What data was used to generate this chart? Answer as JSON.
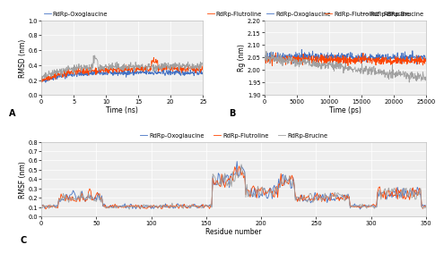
{
  "legend_labels": [
    "RdRp-Oxoglaucine",
    "RdRp-Flutroline",
    "RdRp-Brucine"
  ],
  "colors": [
    "#4472C4",
    "#FF4500",
    "#A0A0A0"
  ],
  "panel_A": {
    "xlabel": "Time (ns)",
    "ylabel": "RMSD (nm)",
    "xlim": [
      0,
      25
    ],
    "ylim": [
      0.0,
      1.0
    ],
    "yticks": [
      0.0,
      0.2,
      0.4,
      0.6,
      0.8,
      1.0
    ],
    "xticks": [
      0,
      5,
      10,
      15,
      20,
      25
    ],
    "label": "A"
  },
  "panel_B": {
    "xlabel": "Time (ps)",
    "ylabel": "Rg (nm)",
    "xlim": [
      0,
      25000
    ],
    "ylim": [
      1.9,
      2.2
    ],
    "yticks": [
      1.9,
      1.95,
      2.0,
      2.05,
      2.1,
      2.15,
      2.2
    ],
    "xticks": [
      0,
      5000,
      10000,
      15000,
      20000,
      25000
    ],
    "label": "B"
  },
  "panel_C": {
    "xlabel": "Residue number",
    "ylabel": "RMSF (nm)",
    "xlim": [
      0,
      350
    ],
    "ylim": [
      0.0,
      0.8
    ],
    "yticks": [
      0.0,
      0.1,
      0.2,
      0.3,
      0.4,
      0.5,
      0.6,
      0.7,
      0.8
    ],
    "xticks": [
      0,
      50,
      100,
      150,
      200,
      250,
      300,
      350
    ],
    "label": "C"
  },
  "font_size": 5.5,
  "legend_font_size": 4.8,
  "label_font_size": 7,
  "tick_font_size": 4.8,
  "line_width": 0.6,
  "background_color": "#ffffff",
  "axes_bg": "#efefef",
  "grid_color": "#ffffff"
}
